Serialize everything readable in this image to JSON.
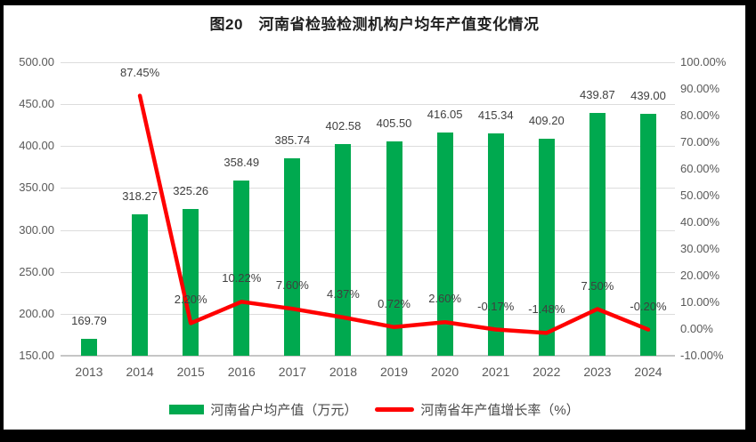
{
  "frame": {
    "background": "#000000",
    "chart_background": "#ffffff"
  },
  "chart_data": {
    "type": "combo",
    "title": "图20　河南省检验检测机构户均年产值变化情况",
    "categories": [
      "2013",
      "2014",
      "2015",
      "2016",
      "2017",
      "2018",
      "2019",
      "2020",
      "2021",
      "2022",
      "2023",
      "2024"
    ],
    "series": [
      {
        "name": "河南省户均产值（万元）",
        "chart_type": "bar",
        "axis": "left",
        "color": "#00A94F",
        "values": [
          169.79,
          318.27,
          325.26,
          358.49,
          385.74,
          402.58,
          405.5,
          416.05,
          415.34,
          409.2,
          439.87,
          439.0
        ],
        "labels": [
          "169.79",
          "318.27",
          "325.26",
          "358.49",
          "385.74",
          "402.58",
          "405.50",
          "416.05",
          "415.34",
          "409.20",
          "439.87",
          "439.00"
        ]
      },
      {
        "name": "河南省年产值增长率（%）",
        "chart_type": "line",
        "axis": "right",
        "color": "#FF0000",
        "values": [
          null,
          87.45,
          2.2,
          10.22,
          7.6,
          4.37,
          0.72,
          2.6,
          -0.17,
          -1.48,
          7.5,
          -0.2
        ],
        "labels": [
          "",
          "87.45%",
          "2.20%",
          "10.22%",
          "7.60%",
          "4.37%",
          "0.72%",
          "2.60%",
          "-0.17%",
          "-1.48%",
          "7.50%",
          "-0.20%"
        ]
      }
    ],
    "left_axis": {
      "min": 150,
      "max": 500,
      "tick_step": 50,
      "ticks": [
        "500.00",
        "450.00",
        "400.00",
        "350.00",
        "300.00",
        "250.00",
        "200.00",
        "150.00"
      ]
    },
    "right_axis": {
      "min": -10,
      "max": 100,
      "tick_step": 10,
      "ticks": [
        "100.00%",
        "90.00%",
        "80.00%",
        "70.00%",
        "60.00%",
        "50.00%",
        "40.00%",
        "30.00%",
        "20.00%",
        "10.00%",
        "0.00%",
        "-10.00%"
      ]
    },
    "grid": "horizontal",
    "legend_position": "bottom",
    "colors": {
      "gridline": "#dcdcdc",
      "axis_line": "#c6c6c6",
      "tick_text": "#595959",
      "data_label_text": "#3f3f3f",
      "title_text": "#1f1f1f"
    }
  }
}
